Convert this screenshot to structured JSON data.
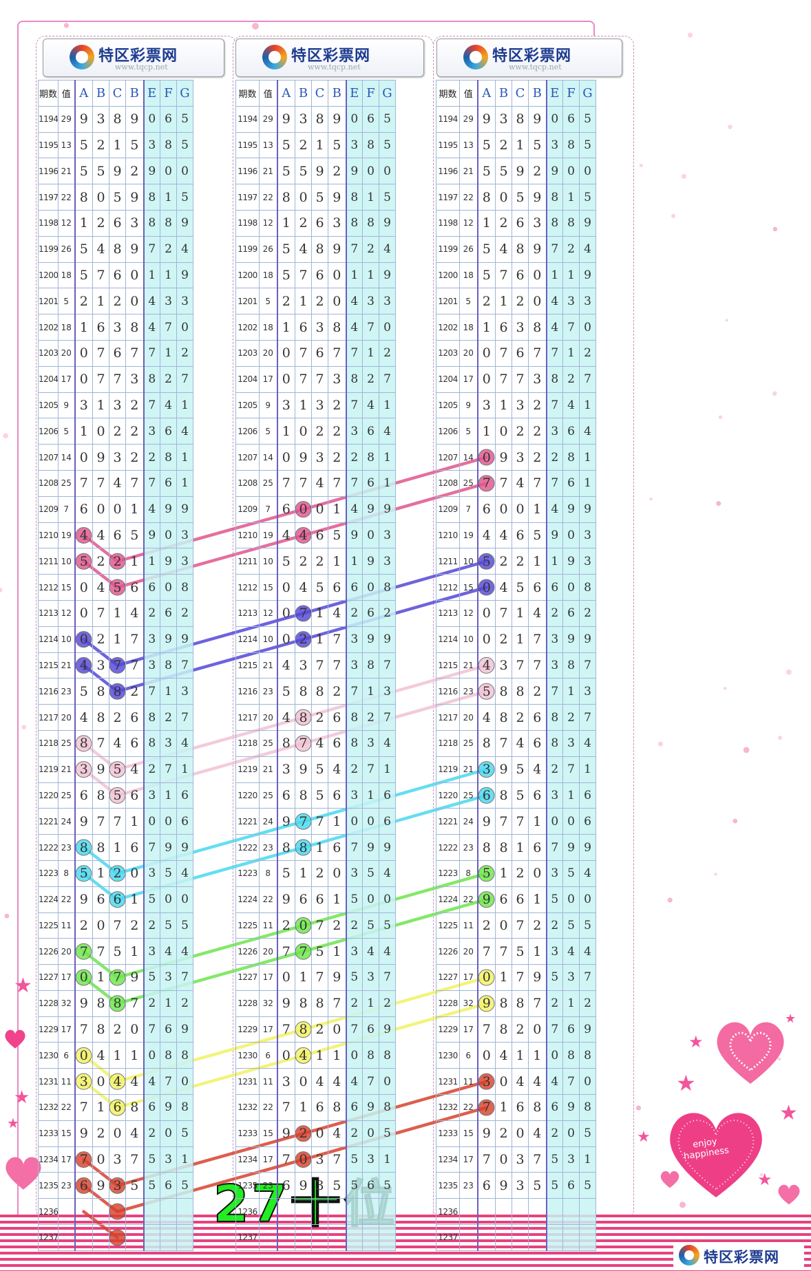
{
  "logo": {
    "name": "特区彩票网",
    "url": "www.tqcp.net"
  },
  "headers": [
    "期数",
    "值",
    "A",
    "B",
    "C",
    "B",
    "E",
    "F",
    "G"
  ],
  "rows": [
    [
      "1194",
      "29",
      "9",
      "3",
      "8",
      "9",
      "0",
      "6",
      "5"
    ],
    [
      "1195",
      "13",
      "5",
      "2",
      "1",
      "5",
      "3",
      "8",
      "5"
    ],
    [
      "1196",
      "21",
      "5",
      "5",
      "9",
      "2",
      "9",
      "0",
      "0"
    ],
    [
      "1197",
      "22",
      "8",
      "0",
      "5",
      "9",
      "8",
      "1",
      "5"
    ],
    [
      "1198",
      "12",
      "1",
      "2",
      "6",
      "3",
      "8",
      "8",
      "9"
    ],
    [
      "1199",
      "26",
      "5",
      "4",
      "8",
      "9",
      "7",
      "2",
      "4"
    ],
    [
      "1200",
      "18",
      "5",
      "7",
      "6",
      "0",
      "1",
      "1",
      "9"
    ],
    [
      "1201",
      "5",
      "2",
      "1",
      "2",
      "0",
      "4",
      "3",
      "3"
    ],
    [
      "1202",
      "18",
      "1",
      "6",
      "3",
      "8",
      "4",
      "7",
      "0"
    ],
    [
      "1203",
      "20",
      "0",
      "7",
      "6",
      "7",
      "7",
      "1",
      "2"
    ],
    [
      "1204",
      "17",
      "0",
      "7",
      "7",
      "3",
      "8",
      "2",
      "7"
    ],
    [
      "1205",
      "9",
      "3",
      "1",
      "3",
      "2",
      "7",
      "4",
      "1"
    ],
    [
      "1206",
      "5",
      "1",
      "0",
      "2",
      "2",
      "3",
      "6",
      "4"
    ],
    [
      "1207",
      "14",
      "0",
      "9",
      "3",
      "2",
      "2",
      "8",
      "1"
    ],
    [
      "1208",
      "25",
      "7",
      "7",
      "4",
      "7",
      "7",
      "6",
      "1"
    ],
    [
      "1209",
      "7",
      "6",
      "0",
      "0",
      "1",
      "4",
      "9",
      "9"
    ],
    [
      "1210",
      "19",
      "4",
      "4",
      "6",
      "5",
      "9",
      "0",
      "3"
    ],
    [
      "1211",
      "10",
      "5",
      "2",
      "2",
      "1",
      "1",
      "9",
      "3"
    ],
    [
      "1212",
      "15",
      "0",
      "4",
      "5",
      "6",
      "6",
      "0",
      "8"
    ],
    [
      "1213",
      "12",
      "0",
      "7",
      "1",
      "4",
      "2",
      "6",
      "2"
    ],
    [
      "1214",
      "10",
      "0",
      "2",
      "1",
      "7",
      "3",
      "9",
      "9"
    ],
    [
      "1215",
      "21",
      "4",
      "3",
      "7",
      "7",
      "3",
      "8",
      "7"
    ],
    [
      "1216",
      "23",
      "5",
      "8",
      "8",
      "2",
      "7",
      "1",
      "3"
    ],
    [
      "1217",
      "20",
      "4",
      "8",
      "2",
      "6",
      "8",
      "2",
      "7"
    ],
    [
      "1218",
      "25",
      "8",
      "7",
      "4",
      "6",
      "8",
      "3",
      "4"
    ],
    [
      "1219",
      "21",
      "3",
      "9",
      "5",
      "4",
      "2",
      "7",
      "1"
    ],
    [
      "1220",
      "25",
      "6",
      "8",
      "5",
      "6",
      "3",
      "1",
      "6"
    ],
    [
      "1221",
      "24",
      "9",
      "7",
      "7",
      "1",
      "0",
      "0",
      "6"
    ],
    [
      "1222",
      "23",
      "8",
      "8",
      "1",
      "6",
      "7",
      "9",
      "9"
    ],
    [
      "1223",
      "8",
      "5",
      "1",
      "2",
      "0",
      "3",
      "5",
      "4"
    ],
    [
      "1224",
      "22",
      "9",
      "6",
      "6",
      "1",
      "5",
      "0",
      "0"
    ],
    [
      "1225",
      "11",
      "2",
      "0",
      "7",
      "2",
      "2",
      "5",
      "5"
    ],
    [
      "1226",
      "20",
      "7",
      "7",
      "5",
      "1",
      "3",
      "4",
      "4"
    ],
    [
      "1227",
      "17",
      "0",
      "1",
      "7",
      "9",
      "5",
      "3",
      "7"
    ],
    [
      "1228",
      "32",
      "9",
      "8",
      "8",
      "7",
      "2",
      "1",
      "2"
    ],
    [
      "1229",
      "17",
      "7",
      "8",
      "2",
      "0",
      "7",
      "6",
      "9"
    ],
    [
      "1230",
      "6",
      "0",
      "4",
      "1",
      "1",
      "0",
      "8",
      "8"
    ],
    [
      "1231",
      "11",
      "3",
      "0",
      "4",
      "4",
      "4",
      "7",
      "0"
    ],
    [
      "1232",
      "22",
      "7",
      "1",
      "6",
      "8",
      "6",
      "9",
      "8"
    ],
    [
      "1233",
      "15",
      "9",
      "2",
      "0",
      "4",
      "2",
      "0",
      "5"
    ],
    [
      "1234",
      "17",
      "7",
      "0",
      "3",
      "7",
      "5",
      "3",
      "1"
    ],
    [
      "1235",
      "23",
      "6",
      "9",
      "3",
      "5",
      "5",
      "6",
      "5"
    ],
    [
      "1236",
      "",
      "",
      "",
      "",
      "",
      "",
      "",
      ""
    ],
    [
      "1237",
      "",
      "",
      "",
      "",
      "",
      "",
      "",
      ""
    ]
  ],
  "caption": "27十位",
  "decor_text": "enjoy happiness",
  "colors": {
    "pink": "#e0568e",
    "purple": "#5548d6",
    "light_pink": "#f1c3d4",
    "cyan": "#49d9ef",
    "green": "#6ee64c",
    "yellow": "#f2f264",
    "red": "#d8432e"
  },
  "highlights": [
    {
      "panel": 0,
      "color": "pink",
      "cells": [
        [
          16,
          2
        ],
        [
          17,
          2
        ],
        [
          17,
          4
        ],
        [
          18,
          4
        ]
      ],
      "lines": [
        [
          [
            16,
            2
          ],
          [
            17,
            4
          ]
        ],
        [
          [
            17,
            2
          ],
          [
            18,
            4
          ]
        ]
      ]
    },
    {
      "panel": 0,
      "color": "purple",
      "cells": [
        [
          20,
          2
        ],
        [
          21,
          2
        ],
        [
          21,
          4
        ],
        [
          22,
          4
        ]
      ],
      "lines": [
        [
          [
            20,
            2
          ],
          [
            21,
            4
          ]
        ],
        [
          [
            21,
            2
          ],
          [
            22,
            4
          ]
        ]
      ]
    },
    {
      "panel": 0,
      "color": "light_pink",
      "cells": [
        [
          24,
          2
        ],
        [
          25,
          2
        ],
        [
          25,
          4
        ],
        [
          26,
          4
        ]
      ],
      "lines": [
        [
          [
            24,
            2
          ],
          [
            25,
            4
          ]
        ],
        [
          [
            25,
            2
          ],
          [
            26,
            4
          ]
        ]
      ]
    },
    {
      "panel": 0,
      "color": "cyan",
      "cells": [
        [
          28,
          2
        ],
        [
          29,
          2
        ],
        [
          29,
          4
        ],
        [
          30,
          4
        ]
      ],
      "lines": [
        [
          [
            28,
            2
          ],
          [
            29,
            4
          ]
        ],
        [
          [
            29,
            2
          ],
          [
            30,
            4
          ]
        ]
      ]
    },
    {
      "panel": 0,
      "color": "green",
      "cells": [
        [
          32,
          2
        ],
        [
          33,
          2
        ],
        [
          33,
          4
        ],
        [
          34,
          4
        ]
      ],
      "lines": [
        [
          [
            32,
            2
          ],
          [
            33,
            4
          ]
        ],
        [
          [
            33,
            2
          ],
          [
            34,
            4
          ]
        ]
      ]
    },
    {
      "panel": 0,
      "color": "yellow",
      "cells": [
        [
          36,
          2
        ],
        [
          37,
          2
        ],
        [
          37,
          4
        ],
        [
          38,
          4
        ]
      ],
      "lines": [
        [
          [
            36,
            2
          ],
          [
            37,
            4
          ]
        ],
        [
          [
            37,
            2
          ],
          [
            38,
            4
          ]
        ]
      ]
    },
    {
      "panel": 0,
      "color": "red",
      "cells": [
        [
          40,
          2
        ],
        [
          41,
          2
        ],
        [
          41,
          4
        ],
        [
          42,
          4
        ]
      ],
      "lines": [
        [
          [
            40,
            2
          ],
          [
            41,
            4
          ]
        ],
        [
          [
            41,
            2
          ],
          [
            42,
            4
          ]
        ]
      ]
    },
    {
      "panel": 1,
      "color": "pink",
      "cells": [
        [
          15,
          3
        ],
        [
          16,
          3
        ]
      ],
      "lines": []
    },
    {
      "panel": 1,
      "color": "purple",
      "cells": [
        [
          19,
          3
        ],
        [
          20,
          3
        ]
      ],
      "lines": []
    },
    {
      "panel": 1,
      "color": "light_pink",
      "cells": [
        [
          23,
          3
        ],
        [
          24,
          3
        ]
      ],
      "lines": []
    },
    {
      "panel": 1,
      "color": "cyan",
      "cells": [
        [
          27,
          3
        ],
        [
          28,
          3
        ]
      ],
      "lines": []
    },
    {
      "panel": 1,
      "color": "green",
      "cells": [
        [
          31,
          3
        ],
        [
          32,
          3
        ]
      ],
      "lines": []
    },
    {
      "panel": 1,
      "color": "yellow",
      "cells": [
        [
          35,
          3
        ],
        [
          36,
          3
        ]
      ],
      "lines": []
    },
    {
      "panel": 1,
      "color": "red",
      "cells": [
        [
          39,
          3
        ],
        [
          40,
          3
        ]
      ],
      "lines": []
    },
    {
      "panel": 2,
      "color": "pink",
      "cells": [
        [
          13,
          2
        ],
        [
          14,
          2
        ]
      ],
      "lines": []
    },
    {
      "panel": 2,
      "color": "purple",
      "cells": [
        [
          17,
          2
        ],
        [
          18,
          2
        ]
      ],
      "lines": []
    },
    {
      "panel": 2,
      "color": "light_pink",
      "cells": [
        [
          21,
          2
        ],
        [
          22,
          2
        ]
      ],
      "lines": []
    },
    {
      "panel": 2,
      "color": "cyan",
      "cells": [
        [
          25,
          2
        ],
        [
          26,
          2
        ]
      ],
      "lines": []
    },
    {
      "panel": 2,
      "color": "green",
      "cells": [
        [
          29,
          2
        ],
        [
          30,
          2
        ]
      ],
      "lines": []
    },
    {
      "panel": 2,
      "color": "yellow",
      "cells": [
        [
          33,
          2
        ],
        [
          34,
          2
        ]
      ],
      "lines": []
    },
    {
      "panel": 2,
      "color": "red",
      "cells": [
        [
          37,
          2
        ],
        [
          38,
          2
        ]
      ],
      "lines": []
    }
  ],
  "cross_lines": [
    {
      "color": "pink",
      "from": [
        0,
        17,
        4
      ],
      "to": [
        1,
        15,
        3
      ]
    },
    {
      "color": "pink",
      "from": [
        0,
        18,
        4
      ],
      "to": [
        1,
        16,
        3
      ]
    },
    {
      "color": "pink",
      "from": [
        1,
        15,
        3
      ],
      "to": [
        2,
        13,
        2
      ]
    },
    {
      "color": "pink",
      "from": [
        1,
        16,
        3
      ],
      "to": [
        2,
        14,
        2
      ]
    },
    {
      "color": "purple",
      "from": [
        0,
        21,
        4
      ],
      "to": [
        1,
        19,
        3
      ]
    },
    {
      "color": "purple",
      "from": [
        0,
        22,
        4
      ],
      "to": [
        1,
        20,
        3
      ]
    },
    {
      "color": "purple",
      "from": [
        1,
        19,
        3
      ],
      "to": [
        2,
        17,
        2
      ]
    },
    {
      "color": "purple",
      "from": [
        1,
        20,
        3
      ],
      "to": [
        2,
        18,
        2
      ]
    },
    {
      "color": "light_pink",
      "from": [
        0,
        25,
        4
      ],
      "to": [
        1,
        23,
        3
      ]
    },
    {
      "color": "light_pink",
      "from": [
        0,
        26,
        4
      ],
      "to": [
        1,
        24,
        3
      ]
    },
    {
      "color": "light_pink",
      "from": [
        1,
        23,
        3
      ],
      "to": [
        2,
        21,
        2
      ]
    },
    {
      "color": "light_pink",
      "from": [
        1,
        24,
        3
      ],
      "to": [
        2,
        22,
        2
      ]
    },
    {
      "color": "cyan",
      "from": [
        0,
        29,
        4
      ],
      "to": [
        1,
        27,
        3
      ]
    },
    {
      "color": "cyan",
      "from": [
        0,
        30,
        4
      ],
      "to": [
        1,
        28,
        3
      ]
    },
    {
      "color": "cyan",
      "from": [
        1,
        27,
        3
      ],
      "to": [
        2,
        25,
        2
      ]
    },
    {
      "color": "cyan",
      "from": [
        1,
        28,
        3
      ],
      "to": [
        2,
        26,
        2
      ]
    },
    {
      "color": "green",
      "from": [
        0,
        33,
        4
      ],
      "to": [
        1,
        31,
        3
      ]
    },
    {
      "color": "green",
      "from": [
        0,
        34,
        4
      ],
      "to": [
        1,
        32,
        3
      ]
    },
    {
      "color": "green",
      "from": [
        1,
        31,
        3
      ],
      "to": [
        2,
        29,
        2
      ]
    },
    {
      "color": "green",
      "from": [
        1,
        32,
        3
      ],
      "to": [
        2,
        30,
        2
      ]
    },
    {
      "color": "yellow",
      "from": [
        0,
        37,
        4
      ],
      "to": [
        1,
        35,
        3
      ]
    },
    {
      "color": "yellow",
      "from": [
        0,
        38,
        4
      ],
      "to": [
        1,
        36,
        3
      ]
    },
    {
      "color": "yellow",
      "from": [
        1,
        35,
        3
      ],
      "to": [
        2,
        33,
        2
      ]
    },
    {
      "color": "yellow",
      "from": [
        1,
        36,
        3
      ],
      "to": [
        2,
        34,
        2
      ]
    },
    {
      "color": "red",
      "from": [
        0,
        41,
        4
      ],
      "to": [
        1,
        39,
        3
      ]
    },
    {
      "color": "red",
      "from": [
        0,
        42,
        4
      ],
      "to": [
        1,
        40,
        3
      ]
    },
    {
      "color": "red",
      "from": [
        1,
        39,
        3
      ],
      "to": [
        2,
        37,
        2
      ]
    },
    {
      "color": "red",
      "from": [
        1,
        40,
        3
      ],
      "to": [
        2,
        38,
        2
      ]
    }
  ],
  "prediction": {
    "panel": 0,
    "row": 43,
    "col": 4,
    "color": "red"
  }
}
